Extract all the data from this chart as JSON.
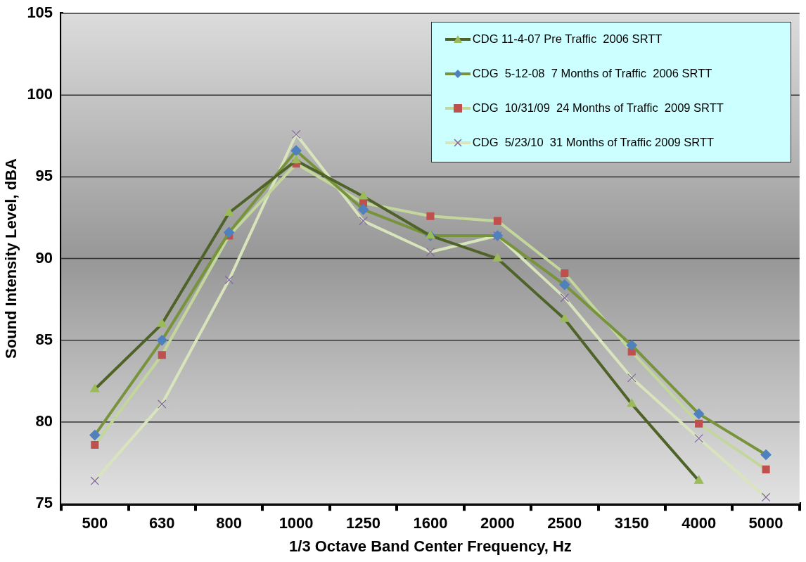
{
  "chart_data": {
    "type": "line",
    "xlabel": "1/3 Octave Band Center Frequency, Hz",
    "ylabel": "Sound Intensity Level, dBA",
    "categories": [
      "500",
      "630",
      "800",
      "1000",
      "1250",
      "1600",
      "2000",
      "2500",
      "3150",
      "4000",
      "5000"
    ],
    "series": [
      {
        "name": "CDG 11-4-07 Pre Traffic  2006 SRTT",
        "color": "#4f6228",
        "marker": "triangle",
        "colors": [
          "#9bbb59",
          "#9bbb59",
          "#9bbb59",
          "#9bbb59",
          "#9bbb59",
          "#9bbb59",
          "#9bbb59",
          "#9bbb59",
          "#9bbb59",
          "#9bbb59",
          "#9bbb59"
        ],
        "values": [
          82.0,
          86.0,
          92.8,
          96.0,
          93.8,
          91.4,
          90.0,
          86.3,
          81.1,
          76.4,
          null
        ]
      },
      {
        "name": "CDG  5-12-08  7 Months of Traffic  2006 SRTT",
        "color": "#77933c",
        "marker": "diamond",
        "colors": [
          "#4f81bd",
          "#4f81bd",
          "#4f81bd",
          "#4f81bd",
          "#4f81bd",
          "#4f81bd",
          "#4f81bd",
          "#4f81bd",
          "#4f81bd",
          "#4f81bd",
          "#4f81bd"
        ],
        "values": [
          79.2,
          85.0,
          91.6,
          96.6,
          93.0,
          91.4,
          91.4,
          88.4,
          84.7,
          80.5,
          78.0
        ]
      },
      {
        "name": "CDG  10/31/09  24 Months of Traffic  2009 SRTT",
        "color": "#c3d69b",
        "marker": "square",
        "colors": [
          "#c0504d",
          "#c0504d",
          "#c0504d",
          "#c0504d",
          "#c0504d",
          "#c0504d",
          "#c0504d",
          "#c0504d",
          "#c0504d",
          "#c0504d",
          "#c0504d"
        ],
        "values": [
          78.6,
          84.1,
          91.4,
          95.8,
          93.4,
          92.6,
          92.3,
          89.1,
          84.3,
          79.9,
          77.1
        ]
      },
      {
        "name": "CDG  5/23/10  31 Months of Traffic 2009 SRTT",
        "color": "#d7e4bc",
        "marker": "cross",
        "colors": [
          "#8064a2",
          "#8064a2",
          "#8064a2",
          "#8064a2",
          "#8064a2",
          "#8064a2",
          "#8064a2",
          "#8064a2",
          "#8064a2",
          "#8064a2",
          "#8064a2"
        ],
        "values": [
          76.4,
          81.1,
          88.7,
          97.6,
          92.3,
          90.4,
          91.4,
          87.6,
          82.7,
          79.0,
          75.4
        ]
      }
    ],
    "ylim": [
      75,
      105
    ],
    "yticks": [
      75,
      80,
      85,
      90,
      95,
      100,
      105
    ],
    "grid": "y",
    "legend": "top right"
  }
}
